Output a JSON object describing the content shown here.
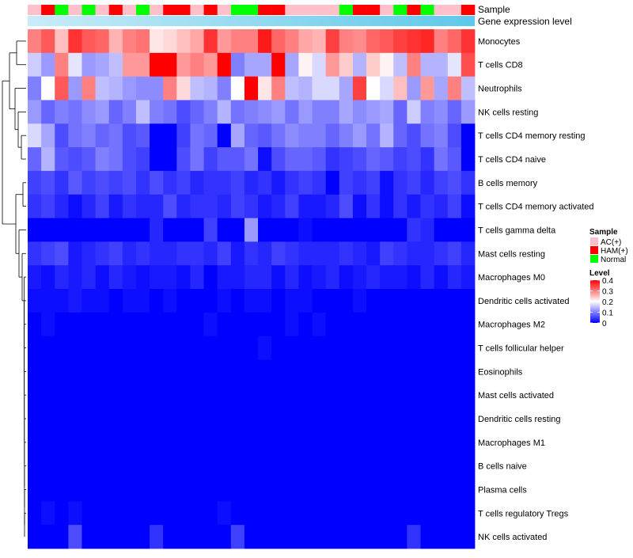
{
  "chart_data": {
    "type": "heatmap",
    "title": "",
    "annotation_labels": [
      "Sample",
      "Gene expression level"
    ],
    "sample_groups": [
      "AC(+)",
      "HAM(+)",
      "Normal",
      "AC(+)",
      "Normal",
      "AC(+)",
      "HAM(+)",
      "AC(+)",
      "Normal",
      "AC(+)",
      "HAM(+)",
      "HAM(+)",
      "AC(+)",
      "HAM(+)",
      "AC(+)",
      "Normal",
      "Normal",
      "HAM(+)",
      "HAM(+)",
      "AC(+)",
      "AC(+)",
      "AC(+)",
      "AC(+)",
      "Normal",
      "HAM(+)",
      "HAM(+)",
      "AC(+)",
      "Normal",
      "HAM(+)",
      "Normal",
      "AC(+)",
      "AC(+)",
      "HAM(+)"
    ],
    "rows": [
      "Monocytes",
      "T cells CD8",
      "Neutrophils",
      "NK cells resting",
      "T cells CD4 memory resting",
      "T cells CD4 naive",
      "B cells memory",
      "T cells CD4 memory activated",
      "T cells gamma delta",
      "Mast cells resting",
      "Macrophages M0",
      "Dendritic cells activated",
      "Macrophages M2",
      "T cells follicular helper",
      "Eosinophils",
      "Mast cells activated",
      "Dendritic cells resting",
      "Macrophages M1",
      "B cells naive",
      "Plasma cells",
      "T cells regulatory  Tregs",
      "NK cells activated"
    ],
    "values": [
      [
        0.3,
        0.33,
        0.25,
        0.36,
        0.33,
        0.32,
        0.26,
        0.3,
        0.31,
        0.22,
        0.23,
        0.25,
        0.27,
        0.36,
        0.28,
        0.3,
        0.3,
        0.38,
        0.32,
        0.3,
        0.27,
        0.26,
        0.35,
        0.3,
        0.29,
        0.32,
        0.33,
        0.35,
        0.36,
        0.37,
        0.3,
        0.32,
        0.36
      ],
      [
        0.16,
        0.12,
        0.3,
        0.18,
        0.12,
        0.13,
        0.15,
        0.28,
        0.28,
        0.4,
        0.4,
        0.28,
        0.3,
        0.28,
        0.4,
        0.1,
        0.13,
        0.13,
        0.4,
        0.13,
        0.21,
        0.17,
        0.28,
        0.24,
        0.14,
        0.24,
        0.21,
        0.15,
        0.3,
        0.14,
        0.14,
        0.18,
        0.34
      ],
      [
        0.1,
        0.2,
        0.33,
        0.12,
        0.3,
        0.15,
        0.14,
        0.12,
        0.11,
        0.11,
        0.3,
        0.23,
        0.15,
        0.14,
        0.1,
        0.2,
        0.4,
        0.22,
        0.3,
        0.15,
        0.14,
        0.17,
        0.17,
        0.13,
        0.35,
        0.2,
        0.17,
        0.25,
        0.12,
        0.28,
        0.13,
        0.3,
        0.15
      ],
      [
        0.12,
        0.08,
        0.1,
        0.09,
        0.11,
        0.12,
        0.08,
        0.1,
        0.15,
        0.1,
        0.09,
        0.06,
        0.08,
        0.1,
        0.14,
        0.09,
        0.1,
        0.11,
        0.12,
        0.09,
        0.12,
        0.1,
        0.1,
        0.13,
        0.11,
        0.12,
        0.13,
        0.08,
        0.16,
        0.1,
        0.11,
        0.08,
        0.12
      ],
      [
        0.17,
        0.13,
        0.06,
        0.09,
        0.1,
        0.08,
        0.09,
        0.06,
        0.07,
        0.0,
        0.0,
        0.05,
        0.09,
        0.08,
        0.0,
        0.13,
        0.08,
        0.07,
        0.09,
        0.11,
        0.1,
        0.1,
        0.08,
        0.1,
        0.12,
        0.09,
        0.14,
        0.08,
        0.06,
        0.09,
        0.1,
        0.06,
        0.0
      ],
      [
        0.08,
        0.14,
        0.07,
        0.06,
        0.07,
        0.1,
        0.09,
        0.06,
        0.05,
        0.0,
        0.0,
        0.06,
        0.09,
        0.05,
        0.07,
        0.07,
        0.09,
        0.01,
        0.06,
        0.08,
        0.08,
        0.07,
        0.04,
        0.05,
        0.06,
        0.08,
        0.07,
        0.05,
        0.06,
        0.04,
        0.09,
        0.07,
        0.0
      ],
      [
        0.05,
        0.06,
        0.04,
        0.07,
        0.05,
        0.06,
        0.05,
        0.06,
        0.04,
        0.06,
        0.04,
        0.05,
        0.03,
        0.04,
        0.04,
        0.05,
        0.03,
        0.04,
        0.02,
        0.04,
        0.05,
        0.04,
        0.0,
        0.05,
        0.04,
        0.05,
        0.01,
        0.04,
        0.05,
        0.03,
        0.05,
        0.06,
        0.04
      ],
      [
        0.04,
        0.05,
        0.03,
        0.01,
        0.03,
        0.05,
        0.02,
        0.04,
        0.03,
        0.03,
        0.06,
        0.03,
        0.04,
        0.04,
        0.03,
        0.05,
        0.04,
        0.02,
        0.03,
        0.05,
        0.02,
        0.02,
        0.03,
        0.06,
        0.01,
        0.04,
        0.01,
        0.04,
        0.02,
        0.04,
        0.03,
        0.05,
        0.01
      ],
      [
        0.0,
        0.0,
        0.0,
        0.0,
        0.0,
        0.0,
        0.0,
        0.0,
        0.0,
        0.03,
        0.0,
        0.0,
        0.0,
        0.05,
        0.0,
        0.0,
        0.12,
        0.0,
        0.0,
        0.0,
        0.01,
        0.0,
        0.0,
        0.0,
        0.0,
        0.0,
        0.0,
        0.0,
        0.04,
        0.03,
        0.0,
        0.0,
        0.0
      ],
      [
        0.04,
        0.05,
        0.06,
        0.02,
        0.03,
        0.04,
        0.05,
        0.03,
        0.04,
        0.03,
        0.03,
        0.04,
        0.04,
        0.03,
        0.05,
        0.02,
        0.04,
        0.03,
        0.05,
        0.04,
        0.03,
        0.03,
        0.03,
        0.04,
        0.03,
        0.02,
        0.05,
        0.04,
        0.03,
        0.03,
        0.04,
        0.05,
        0.03
      ],
      [
        0.02,
        0.01,
        0.03,
        0.02,
        0.03,
        0.01,
        0.03,
        0.02,
        0.01,
        0.02,
        0.02,
        0.01,
        0.03,
        0.0,
        0.02,
        0.02,
        0.03,
        0.03,
        0.01,
        0.03,
        0.01,
        0.02,
        0.03,
        0.01,
        0.02,
        0.03,
        0.02,
        0.02,
        0.01,
        0.03,
        0.01,
        0.03,
        0.02
      ],
      [
        0.01,
        0.01,
        0.01,
        0.02,
        0.01,
        0.01,
        0.0,
        0.01,
        0.01,
        0.0,
        0.01,
        0.0,
        0.0,
        0.0,
        0.01,
        0.0,
        0.01,
        0.01,
        0.0,
        0.01,
        0.01,
        0.0,
        0.0,
        0.0,
        0.01,
        0.0,
        0.0,
        0.0,
        0.0,
        0.0,
        0.0,
        0.0,
        0.0
      ],
      [
        0.0,
        0.01,
        0.0,
        0.0,
        0.0,
        0.0,
        0.0,
        0.0,
        0.0,
        0.0,
        0.0,
        0.0,
        0.0,
        0.01,
        0.0,
        0.0,
        0.0,
        0.0,
        0.0,
        0.01,
        0.0,
        0.01,
        0.0,
        0.0,
        0.0,
        0.0,
        0.0,
        0.0,
        0.0,
        0.0,
        0.0,
        0.0,
        0.0
      ],
      [
        0.0,
        0.0,
        0.0,
        0.0,
        0.0,
        0.0,
        0.0,
        0.0,
        0.0,
        0.0,
        0.0,
        0.0,
        0.0,
        0.0,
        0.0,
        0.0,
        0.0,
        0.01,
        0.0,
        0.0,
        0.0,
        0.0,
        0.0,
        0.0,
        0.0,
        0.0,
        0.0,
        0.0,
        0.0,
        0.0,
        0.0,
        0.0,
        0.0
      ],
      [
        0.0,
        0.0,
        0.0,
        0.0,
        0.0,
        0.0,
        0.0,
        0.0,
        0.0,
        0.0,
        0.0,
        0.0,
        0.0,
        0.0,
        0.0,
        0.0,
        0.0,
        0.0,
        0.0,
        0.0,
        0.0,
        0.0,
        0.0,
        0.0,
        0.0,
        0.0,
        0.0,
        0.0,
        0.0,
        0.0,
        0.0,
        0.0,
        0.0
      ],
      [
        0.0,
        0.0,
        0.0,
        0.0,
        0.0,
        0.0,
        0.0,
        0.0,
        0.0,
        0.0,
        0.0,
        0.0,
        0.0,
        0.0,
        0.0,
        0.0,
        0.0,
        0.0,
        0.0,
        0.0,
        0.0,
        0.0,
        0.0,
        0.0,
        0.0,
        0.0,
        0.0,
        0.0,
        0.0,
        0.0,
        0.0,
        0.0,
        0.0
      ],
      [
        0.0,
        0.0,
        0.0,
        0.0,
        0.0,
        0.0,
        0.0,
        0.0,
        0.0,
        0.0,
        0.0,
        0.0,
        0.0,
        0.0,
        0.0,
        0.0,
        0.0,
        0.0,
        0.0,
        0.0,
        0.0,
        0.0,
        0.0,
        0.0,
        0.0,
        0.0,
        0.0,
        0.0,
        0.0,
        0.0,
        0.0,
        0.0,
        0.0
      ],
      [
        0.0,
        0.0,
        0.0,
        0.0,
        0.0,
        0.0,
        0.0,
        0.0,
        0.0,
        0.0,
        0.0,
        0.0,
        0.0,
        0.0,
        0.0,
        0.0,
        0.0,
        0.0,
        0.0,
        0.0,
        0.0,
        0.0,
        0.0,
        0.0,
        0.0,
        0.0,
        0.0,
        0.0,
        0.0,
        0.0,
        0.0,
        0.0,
        0.0
      ],
      [
        0.0,
        0.0,
        0.0,
        0.0,
        0.0,
        0.0,
        0.0,
        0.0,
        0.0,
        0.0,
        0.0,
        0.0,
        0.0,
        0.0,
        0.0,
        0.0,
        0.0,
        0.0,
        0.0,
        0.0,
        0.0,
        0.0,
        0.0,
        0.0,
        0.0,
        0.0,
        0.0,
        0.0,
        0.0,
        0.0,
        0.0,
        0.0,
        0.0
      ],
      [
        0.0,
        0.0,
        0.0,
        0.0,
        0.0,
        0.0,
        0.0,
        0.0,
        0.0,
        0.0,
        0.0,
        0.0,
        0.0,
        0.0,
        0.0,
        0.0,
        0.0,
        0.0,
        0.0,
        0.0,
        0.0,
        0.0,
        0.0,
        0.0,
        0.0,
        0.0,
        0.0,
        0.0,
        0.0,
        0.0,
        0.0,
        0.0,
        0.0
      ],
      [
        0.0,
        0.01,
        0.0,
        0.01,
        0.0,
        0.0,
        0.0,
        0.0,
        0.0,
        0.0,
        0.0,
        0.0,
        0.0,
        0.0,
        0.01,
        0.0,
        0.0,
        0.0,
        0.0,
        0.0,
        0.0,
        0.0,
        0.0,
        0.0,
        0.0,
        0.0,
        0.0,
        0.0,
        0.0,
        0.0,
        0.0,
        0.0,
        0.0
      ],
      [
        0.0,
        0.0,
        0.0,
        0.06,
        0.0,
        0.0,
        0.0,
        0.0,
        0.0,
        0.04,
        0.0,
        0.0,
        0.0,
        0.0,
        0.0,
        0.05,
        0.0,
        0.0,
        0.0,
        0.0,
        0.0,
        0.0,
        0.0,
        0.0,
        0.0,
        0.0,
        0.0,
        0.0,
        0.04,
        0.0,
        0.0,
        0.0,
        0.0
      ]
    ],
    "gene_expression_bar_color": "#5ec8ea",
    "color_scale": {
      "name": "Level",
      "min": 0,
      "max": 0.4,
      "ticks": [
        "0.4",
        "0.3",
        "0.2",
        "0.1",
        "0"
      ],
      "low_color": "#0000ff",
      "mid_color": "#ffffff",
      "high_color": "#ff0000",
      "midpoint": 0.2
    },
    "sample_legend": {
      "title": "Sample",
      "entries": [
        {
          "label": "AC(+)",
          "color": "#ffc0cb"
        },
        {
          "label": "HAM(+)",
          "color": "#ff0000"
        },
        {
          "label": "Normal",
          "color": "#00ff00"
        }
      ]
    },
    "row_dendrogram": "hierarchical clustering of rows"
  }
}
